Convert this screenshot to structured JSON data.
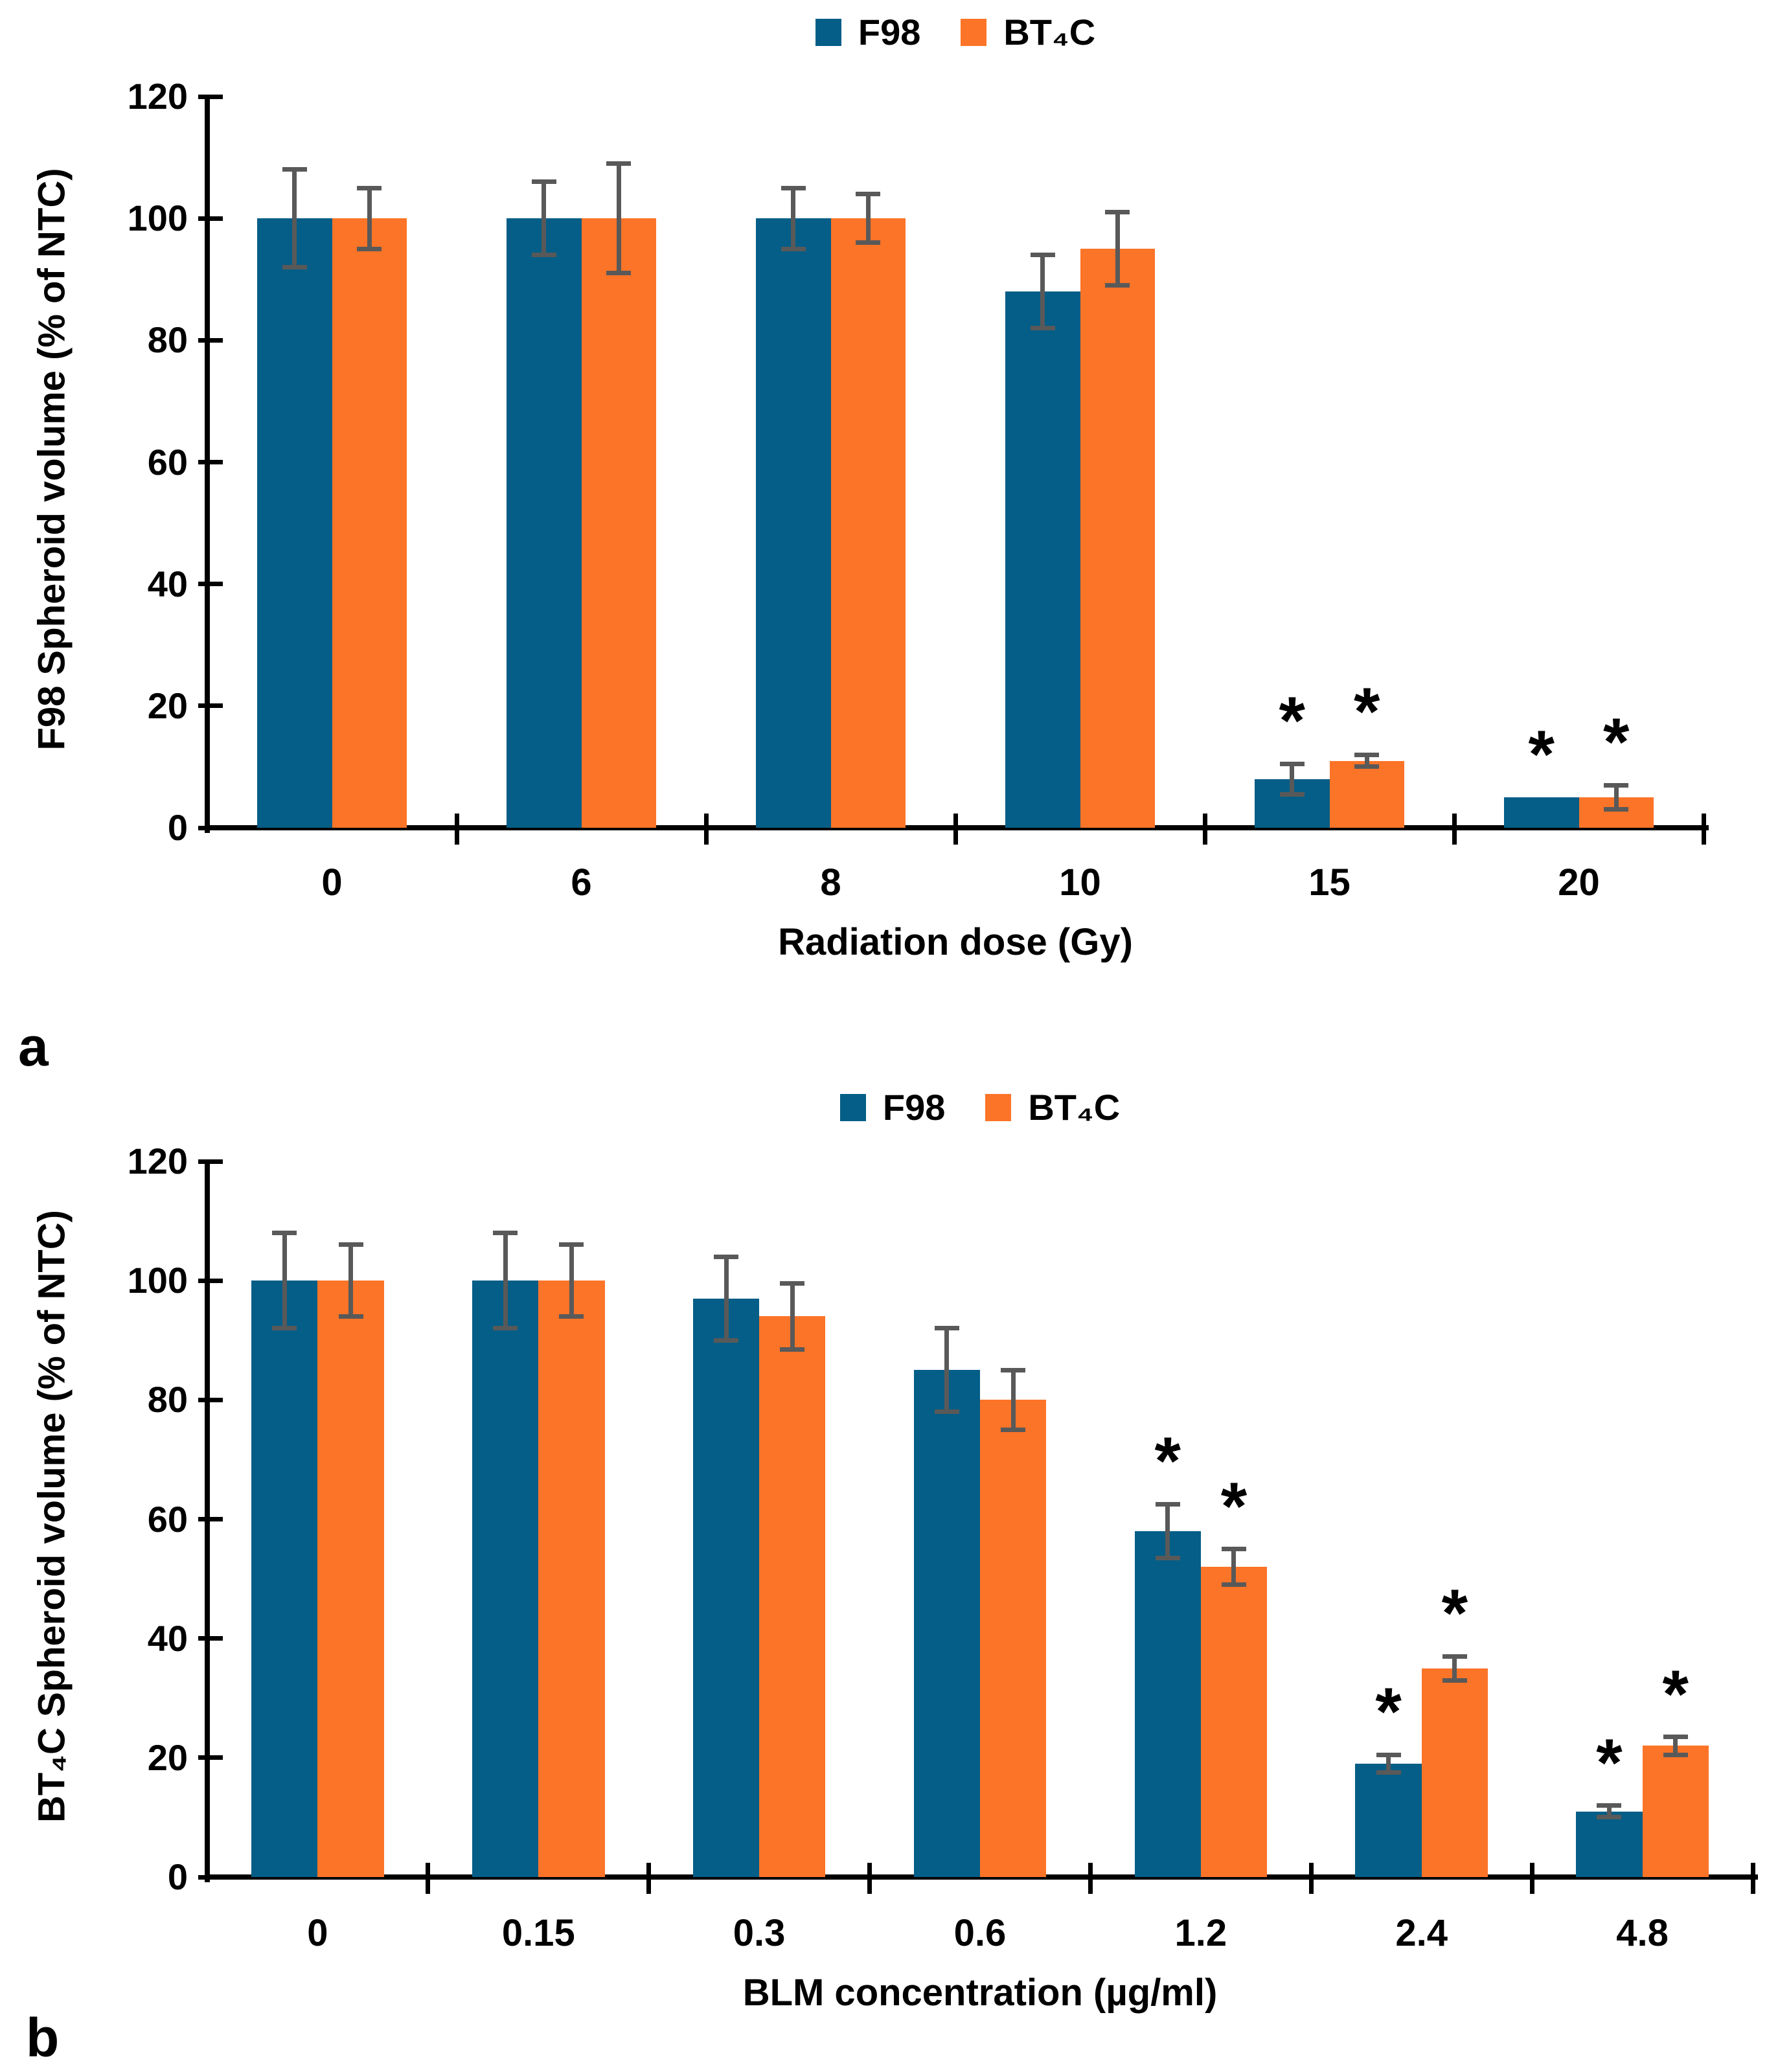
{
  "figure": {
    "significance_marker": "*",
    "colors": {
      "f98_bar": "#045e87",
      "bt4c_bar": "#fc7428",
      "error_bar": "#595959",
      "axis": "#000000",
      "background": "#ffffff"
    },
    "panels": [
      {
        "letter": "a",
        "legend": [
          {
            "label": "F98",
            "color": "#045e87"
          },
          {
            "label": "BT₄C",
            "color": "#fc7428"
          }
        ],
        "chart_data": {
          "type": "bar",
          "title": "",
          "xlabel": "Radiation dose (Gy)",
          "ylabel": "F98 Spheroid volume (% of NTC)",
          "ylim": [
            0,
            120
          ],
          "ytick_step": 20,
          "grid": false,
          "legend_position": "top-center",
          "categories": [
            "0",
            "6",
            "8",
            "10",
            "15",
            "20"
          ],
          "series": [
            {
              "name": "F98",
              "color": "#045e87",
              "values": [
                100,
                100,
                100,
                88,
                8,
                5
              ],
              "errors": [
                8,
                6,
                5,
                6,
                2.5,
                0
              ],
              "significant": [
                false,
                false,
                false,
                false,
                true,
                true
              ]
            },
            {
              "name": "BT₄C",
              "color": "#fc7428",
              "values": [
                100,
                100,
                100,
                95,
                11,
                5
              ],
              "errors": [
                5,
                9,
                4,
                6,
                1,
                2
              ],
              "significant": [
                false,
                false,
                false,
                false,
                true,
                true
              ]
            }
          ]
        }
      },
      {
        "letter": "b",
        "legend": [
          {
            "label": "F98",
            "color": "#045e87"
          },
          {
            "label": "BT₄C",
            "color": "#fc7428"
          }
        ],
        "chart_data": {
          "type": "bar",
          "title": "",
          "xlabel": "BLM concentration (µg/ml)",
          "ylabel": "BT₄C Spheroid volume (% of NTC)",
          "ylim": [
            0,
            120
          ],
          "ytick_step": 20,
          "grid": false,
          "legend_position": "top-center",
          "categories": [
            "0",
            "0.15",
            "0.3",
            "0.6",
            "1.2",
            "2.4",
            "4.8"
          ],
          "series": [
            {
              "name": "F98",
              "color": "#045e87",
              "values": [
                100,
                100,
                97,
                85,
                58,
                19,
                11
              ],
              "errors": [
                8,
                8,
                7,
                7,
                4.5,
                1.5,
                1
              ],
              "significant": [
                false,
                false,
                false,
                false,
                true,
                true,
                true
              ]
            },
            {
              "name": "BT₄C",
              "color": "#fc7428",
              "values": [
                100,
                100,
                94,
                80,
                52,
                35,
                22
              ],
              "errors": [
                6,
                6,
                5.5,
                5,
                3,
                2,
                1.5
              ],
              "significant": [
                false,
                false,
                false,
                false,
                true,
                true,
                true
              ]
            }
          ]
        }
      }
    ]
  }
}
